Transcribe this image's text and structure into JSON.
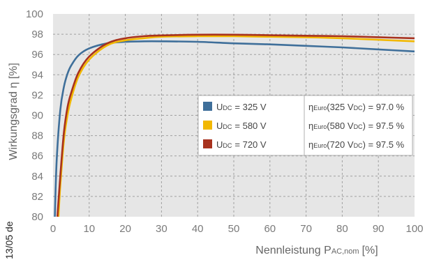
{
  "chart_data": {
    "type": "line",
    "xlabel": {
      "main": "Nennleistung P",
      "sub": "AC,nom",
      "unit": "[%]"
    },
    "ylabel": "Wirkungsgrad η [%]",
    "xlim": [
      0,
      100
    ],
    "ylim": [
      80,
      100
    ],
    "xticks": [
      "0",
      "10",
      "20",
      "30",
      "40",
      "50",
      "60",
      "70",
      "80",
      "90",
      "100"
    ],
    "yticks": [
      "100",
      "98",
      "96",
      "94",
      "92",
      "90",
      "88",
      "86",
      "84",
      "82",
      "80"
    ],
    "grid": true,
    "legend_position": "center-right",
    "series": [
      {
        "legend_main": "U",
        "legend_sub": "DC",
        "legend_value": "= 325 V",
        "eta_pre": "η",
        "eta_sub": "Euro",
        "eta_mid": "(325 V",
        "eta_sub2": "DC",
        "eta_post": ") = 97.0 %",
        "color": "#3f6f9a",
        "points": [
          [
            0.5,
            80
          ],
          [
            1,
            85.5
          ],
          [
            2,
            90.5
          ],
          [
            3,
            92.8
          ],
          [
            4,
            94.1
          ],
          [
            5,
            94.9
          ],
          [
            7,
            95.9
          ],
          [
            10,
            96.6
          ],
          [
            15,
            97.1
          ],
          [
            20,
            97.25
          ],
          [
            25,
            97.3
          ],
          [
            30,
            97.3
          ],
          [
            40,
            97.25
          ],
          [
            50,
            97.1
          ],
          [
            60,
            97.0
          ],
          [
            70,
            96.85
          ],
          [
            80,
            96.7
          ],
          [
            90,
            96.5
          ],
          [
            100,
            96.3
          ]
        ]
      },
      {
        "legend_main": "U",
        "legend_sub": "DC",
        "legend_value": "= 580 V",
        "eta_pre": "η",
        "eta_sub": "Euro",
        "eta_mid": "(580 V",
        "eta_sub2": "DC",
        "eta_post": ") = 97.5 %",
        "color": "#f2b800",
        "points": [
          [
            1.5,
            80
          ],
          [
            2,
            83
          ],
          [
            3,
            87.5
          ],
          [
            4,
            90
          ],
          [
            5,
            91.6
          ],
          [
            7,
            93.8
          ],
          [
            10,
            95.5
          ],
          [
            15,
            96.9
          ],
          [
            20,
            97.4
          ],
          [
            25,
            97.6
          ],
          [
            30,
            97.75
          ],
          [
            40,
            97.8
          ],
          [
            50,
            97.8
          ],
          [
            60,
            97.75
          ],
          [
            70,
            97.7
          ],
          [
            80,
            97.6
          ],
          [
            90,
            97.45
          ],
          [
            100,
            97.3
          ]
        ]
      },
      {
        "legend_main": "U",
        "legend_sub": "DC",
        "legend_value": "= 720 V",
        "eta_pre": "η",
        "eta_sub": "Euro",
        "eta_mid": "(720 V",
        "eta_sub2": "DC",
        "eta_post": ") = 97.5 %",
        "color": "#a8321e",
        "points": [
          [
            1.2,
            80
          ],
          [
            2,
            84
          ],
          [
            3,
            88.3
          ],
          [
            4,
            90.8
          ],
          [
            5,
            92.2
          ],
          [
            7,
            94.2
          ],
          [
            10,
            95.8
          ],
          [
            15,
            97.1
          ],
          [
            20,
            97.6
          ],
          [
            25,
            97.8
          ],
          [
            30,
            97.88
          ],
          [
            40,
            97.95
          ],
          [
            50,
            97.95
          ],
          [
            60,
            97.9
          ],
          [
            70,
            97.85
          ],
          [
            80,
            97.8
          ],
          [
            90,
            97.7
          ],
          [
            100,
            97.6
          ]
        ]
      }
    ]
  },
  "side_label": "13/05 de"
}
